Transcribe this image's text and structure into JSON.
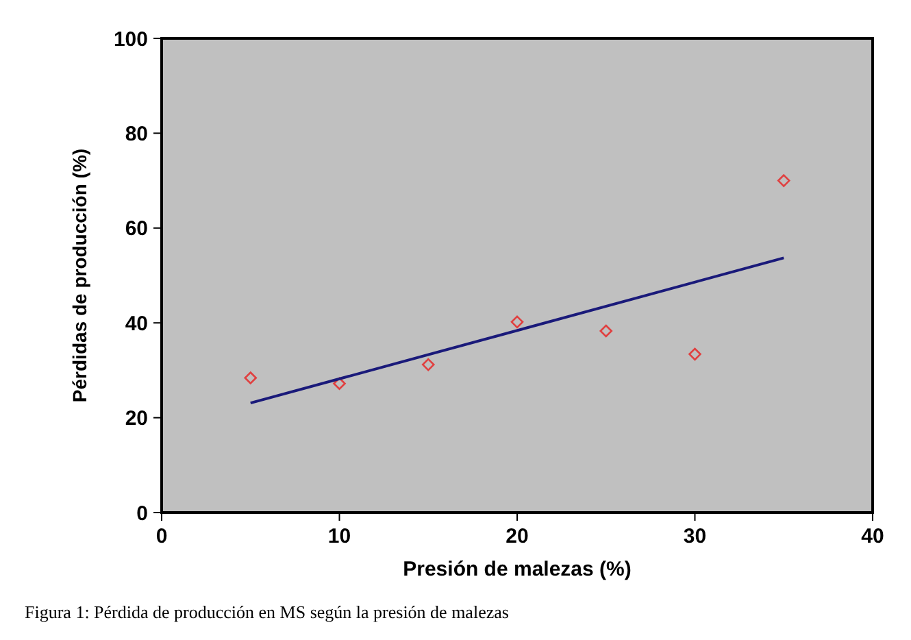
{
  "chart_data": {
    "type": "scatter",
    "xlabel": "Presión de malezas (%)",
    "ylabel": "Pérdidas de producción (%)",
    "x": [
      5,
      10,
      15,
      20,
      25,
      30,
      35
    ],
    "series": [
      {
        "type": "scatter",
        "color": "#e04040",
        "values": [
          28.4,
          27.2,
          31.2,
          40.2,
          38.3,
          33.4,
          70.0
        ],
        "marker": "diamond"
      },
      {
        "type": "line",
        "color": "#1a1a7a",
        "x": [
          5,
          35
        ],
        "values": [
          23.1,
          53.7
        ],
        "marker": "none"
      }
    ],
    "xlim": [
      0,
      40
    ],
    "xticks": [
      0,
      10,
      20,
      30,
      40
    ],
    "ylim": [
      0,
      100
    ],
    "yticks": [
      0,
      20,
      40,
      60,
      80,
      100
    ],
    "grid": false,
    "annotations": [
      "Figura 1: Pérdida de producción en MS según la presión de malezas"
    ]
  }
}
